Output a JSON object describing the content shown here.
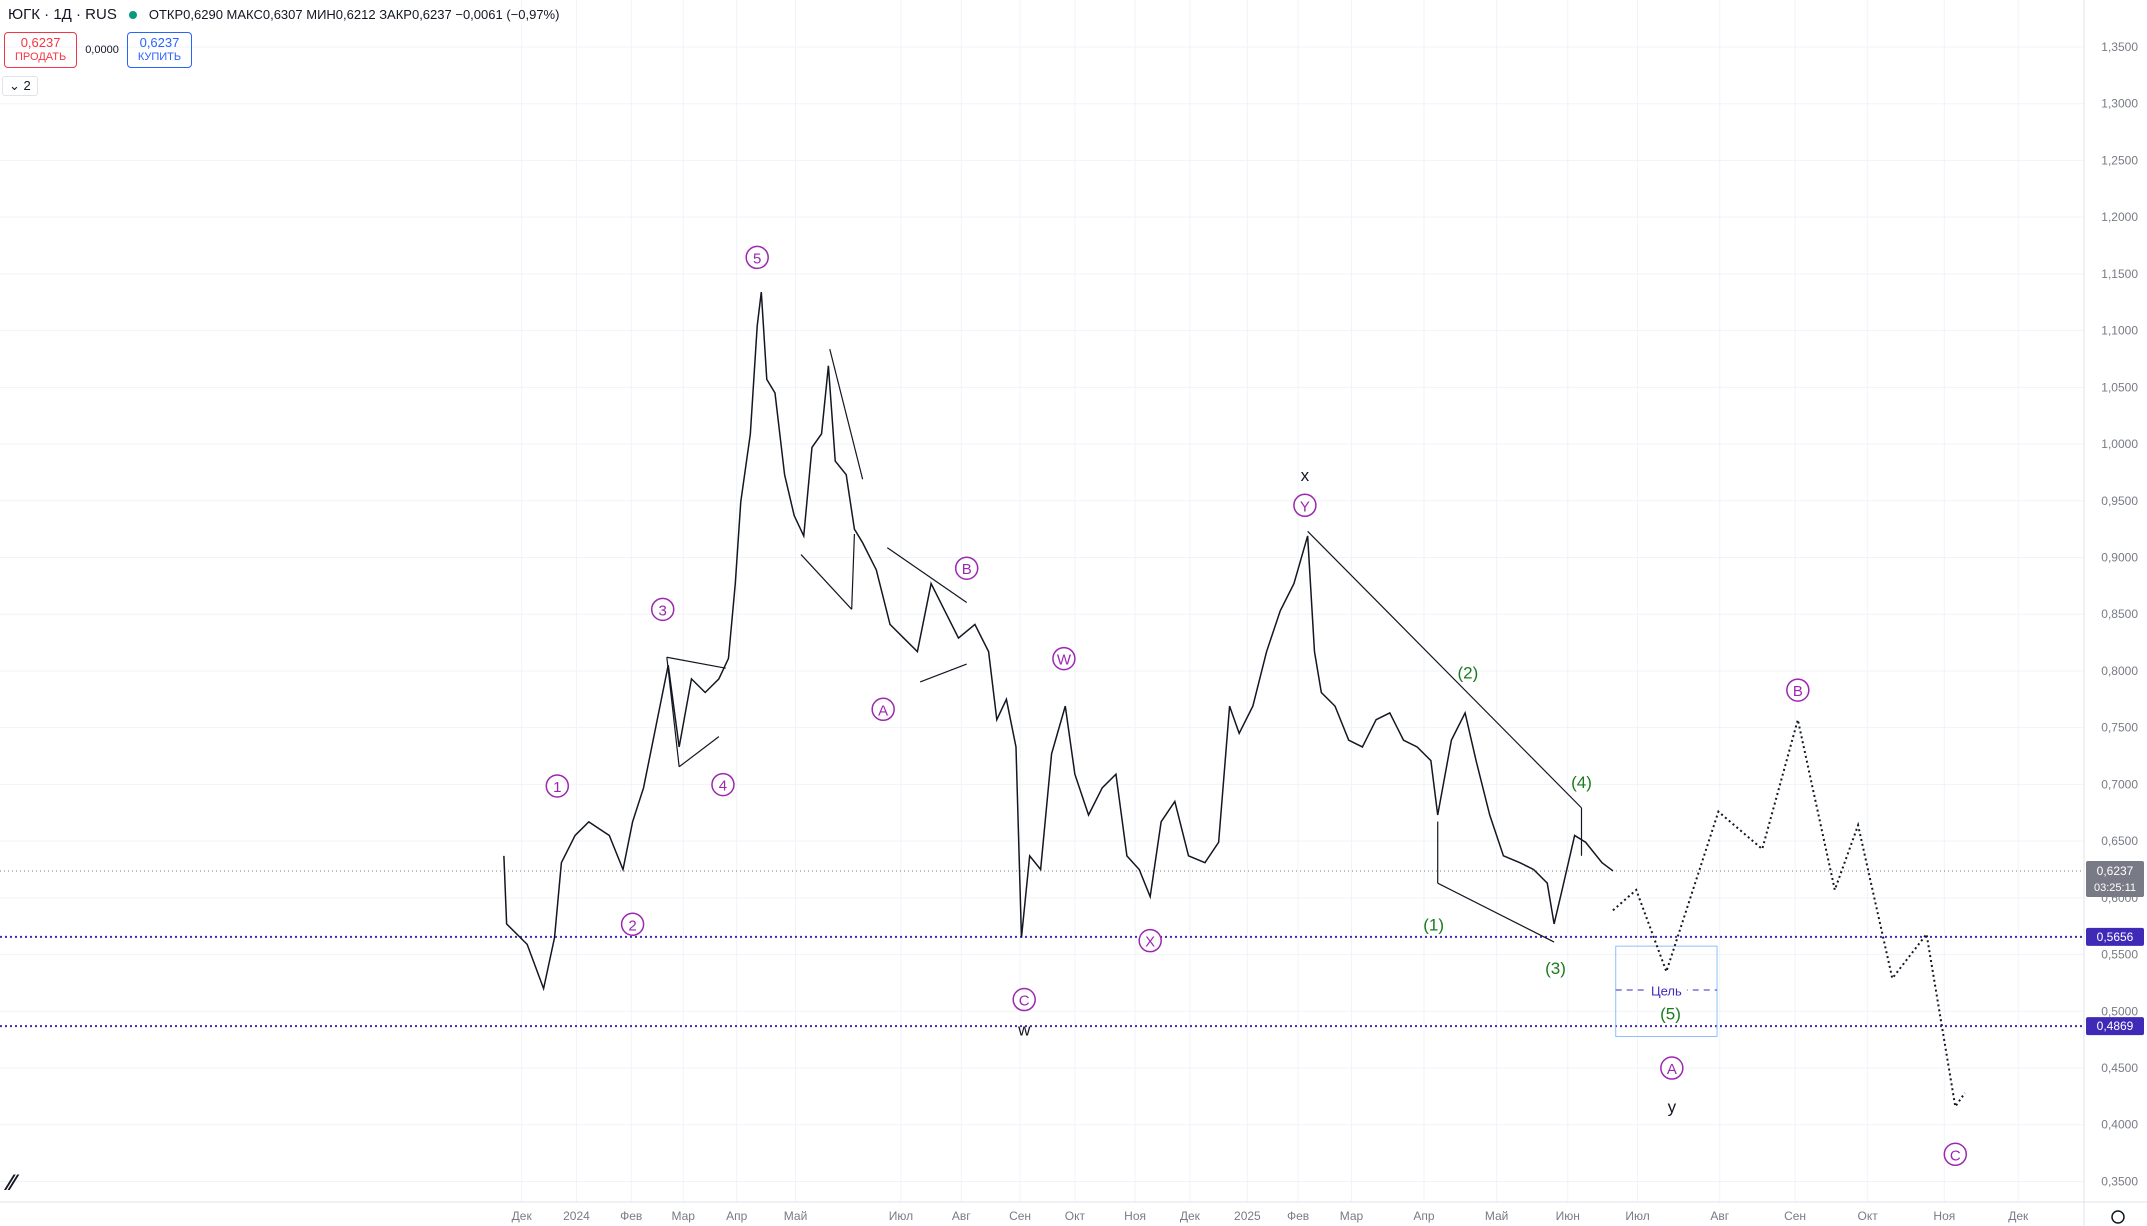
{
  "header": {
    "symbol": "ЮГК · 1Д · RUS",
    "ohlc": [
      "ОТКР0,6290",
      "МАКС0,6307",
      "МИН0,6212",
      "ЗАКР0,6237"
    ],
    "change": "−0,0061 (−0,97%)",
    "indicator_toggle": "2"
  },
  "trade": {
    "sell_price": "0,6237",
    "sell_label": "ПРОДАТЬ",
    "spread": "0,0000",
    "buy_price": "0,6237",
    "buy_label": "КУПИТЬ"
  },
  "chart_data": {
    "type": "line",
    "color": "#131722",
    "x": [
      184,
      185,
      192.5,
      198.5,
      202.5,
      205,
      210,
      215,
      222.5,
      227.5,
      231,
      235,
      240,
      244,
      248,
      252.5,
      257.5,
      262.5,
      266,
      268.5,
      270.5,
      274,
      276.5,
      278,
      280,
      283,
      286.5,
      290,
      293.5,
      296.5,
      300,
      302.5,
      305,
      309,
      312,
      315,
      320,
      325,
      330,
      335,
      340,
      345,
      350,
      356,
      361,
      364,
      367.5,
      371,
      373,
      376,
      380,
      384,
      389,
      392.5,
      397.5,
      402.5,
      407.5,
      411.5,
      416,
      420,
      424,
      429,
      434,
      440,
      445,
      449,
      452.5,
      457.5,
      462.5,
      467.5,
      472.5,
      477.5,
      480,
      482.5,
      487.5,
      492.5,
      497.5,
      502.5,
      507.5,
      512.5,
      517.5,
      522.5,
      525,
      530,
      535,
      539,
      544,
      549,
      555,
      560,
      565,
      567.5,
      571,
      575,
      579,
      585,
      589
    ],
    "values": [
      0.637,
      0.577,
      0.559,
      0.52,
      0.565,
      0.631,
      0.655,
      0.667,
      0.655,
      0.625,
      0.667,
      0.697,
      0.757,
      0.805,
      0.733,
      0.793,
      0.781,
      0.793,
      0.811,
      0.877,
      0.949,
      1.009,
      1.104,
      1.134,
      1.057,
      1.045,
      0.973,
      0.937,
      0.919,
      0.997,
      1.009,
      1.069,
      0.985,
      0.973,
      0.925,
      0.913,
      0.889,
      0.841,
      0.829,
      0.817,
      0.877,
      0.853,
      0.829,
      0.841,
      0.817,
      0.757,
      0.775,
      0.733,
      0.565,
      0.637,
      0.625,
      0.727,
      0.769,
      0.709,
      0.673,
      0.697,
      0.709,
      0.637,
      0.625,
      0.601,
      0.667,
      0.685,
      0.637,
      0.631,
      0.649,
      0.769,
      0.745,
      0.769,
      0.817,
      0.853,
      0.877,
      0.919,
      0.817,
      0.781,
      0.769,
      0.739,
      0.733,
      0.757,
      0.763,
      0.739,
      0.733,
      0.721,
      0.673,
      0.739,
      0.763,
      0.721,
      0.673,
      0.637,
      0.631,
      0.625,
      0.613,
      0.577,
      0.613,
      0.655,
      0.649,
      0.631,
      0.6237
    ],
    "projection": {
      "x": [
        589,
        597.5,
        608.5,
        627.5,
        643.5,
        656.5,
        670,
        678.5,
        691,
        703.5,
        714,
        717.5
      ],
      "values": [
        0.589,
        0.607,
        0.535,
        0.676,
        0.643,
        0.757,
        0.607,
        0.664,
        0.529,
        0.568,
        0.416,
        0.428
      ]
    },
    "xlim": [
      0,
      761
    ],
    "ylim": [
      1.3914,
      0.3319
    ],
    "xticks": [
      {
        "value": 190.5,
        "label": "Дек"
      },
      {
        "value": 210.5,
        "label": "2024"
      },
      {
        "value": 230.5,
        "label": "Фев"
      },
      {
        "value": 249.5,
        "label": "Мар"
      },
      {
        "value": 269,
        "label": "Апр"
      },
      {
        "value": 290.5,
        "label": "Май"
      },
      {
        "value": 329,
        "label": "Июл"
      },
      {
        "value": 351,
        "label": "Авг"
      },
      {
        "value": 372.5,
        "label": "Сен"
      },
      {
        "value": 392.5,
        "label": "Окт"
      },
      {
        "value": 414.5,
        "label": "Ноя"
      },
      {
        "value": 434.5,
        "label": "Дек"
      },
      {
        "value": 455.5,
        "label": "2025"
      },
      {
        "value": 474,
        "label": "Фев"
      },
      {
        "value": 493.5,
        "label": "Мар"
      },
      {
        "value": 520,
        "label": "Апр"
      },
      {
        "value": 546.5,
        "label": "Май"
      },
      {
        "value": 572.5,
        "label": "Июн"
      },
      {
        "value": 598,
        "label": "Июл"
      },
      {
        "value": 628,
        "label": "Авг"
      },
      {
        "value": 655.5,
        "label": "Сен"
      },
      {
        "value": 682,
        "label": "Окт"
      },
      {
        "value": 710,
        "label": "Ноя"
      },
      {
        "value": 737,
        "label": "Дек"
      }
    ],
    "yticks": [
      {
        "value": 1.35,
        "label": "1,3500"
      },
      {
        "value": 1.3,
        "label": "1,3000"
      },
      {
        "value": 1.25,
        "label": "1,2500"
      },
      {
        "value": 1.2,
        "label": "1,2000"
      },
      {
        "value": 1.15,
        "label": "1,1500"
      },
      {
        "value": 1.1,
        "label": "1,1000"
      },
      {
        "value": 1.05,
        "label": "1,0500"
      },
      {
        "value": 1.0,
        "label": "1,0000"
      },
      {
        "value": 0.95,
        "label": "0,9500"
      },
      {
        "value": 0.9,
        "label": "0,9000"
      },
      {
        "value": 0.85,
        "label": "0,8500"
      },
      {
        "value": 0.8,
        "label": "0,8000"
      },
      {
        "value": 0.75,
        "label": "0,7500"
      },
      {
        "value": 0.7,
        "label": "0,7000"
      },
      {
        "value": 0.65,
        "label": "0,6500"
      },
      {
        "value": 0.6,
        "label": "0,6000"
      },
      {
        "value": 0.55,
        "label": "0,5500"
      },
      {
        "value": 0.5,
        "label": "0,5000"
      },
      {
        "value": 0.45,
        "label": "0,4500"
      },
      {
        "value": 0.4,
        "label": "0,4000"
      },
      {
        "value": 0.35,
        "label": "0,3500"
      }
    ],
    "grid": true,
    "last": {
      "value": 0.6237,
      "label": "0,6237",
      "countdown": "03:25:11"
    },
    "levels": [
      {
        "value": 0.5656,
        "label": "0,5656",
        "color": "#3f2ab8"
      },
      {
        "value": 0.4869,
        "label": "0,4869",
        "color": "#3f2ab8"
      }
    ],
    "target_label": "Цель",
    "annotations": [
      "1",
      "2",
      "3",
      "4",
      "5",
      "A",
      "B",
      "W",
      "C",
      "w",
      "X",
      "x",
      "Y",
      "(1)",
      "(2)",
      "(3)",
      "(4)",
      "(5)",
      "A",
      "y",
      "B",
      "C"
    ]
  }
}
